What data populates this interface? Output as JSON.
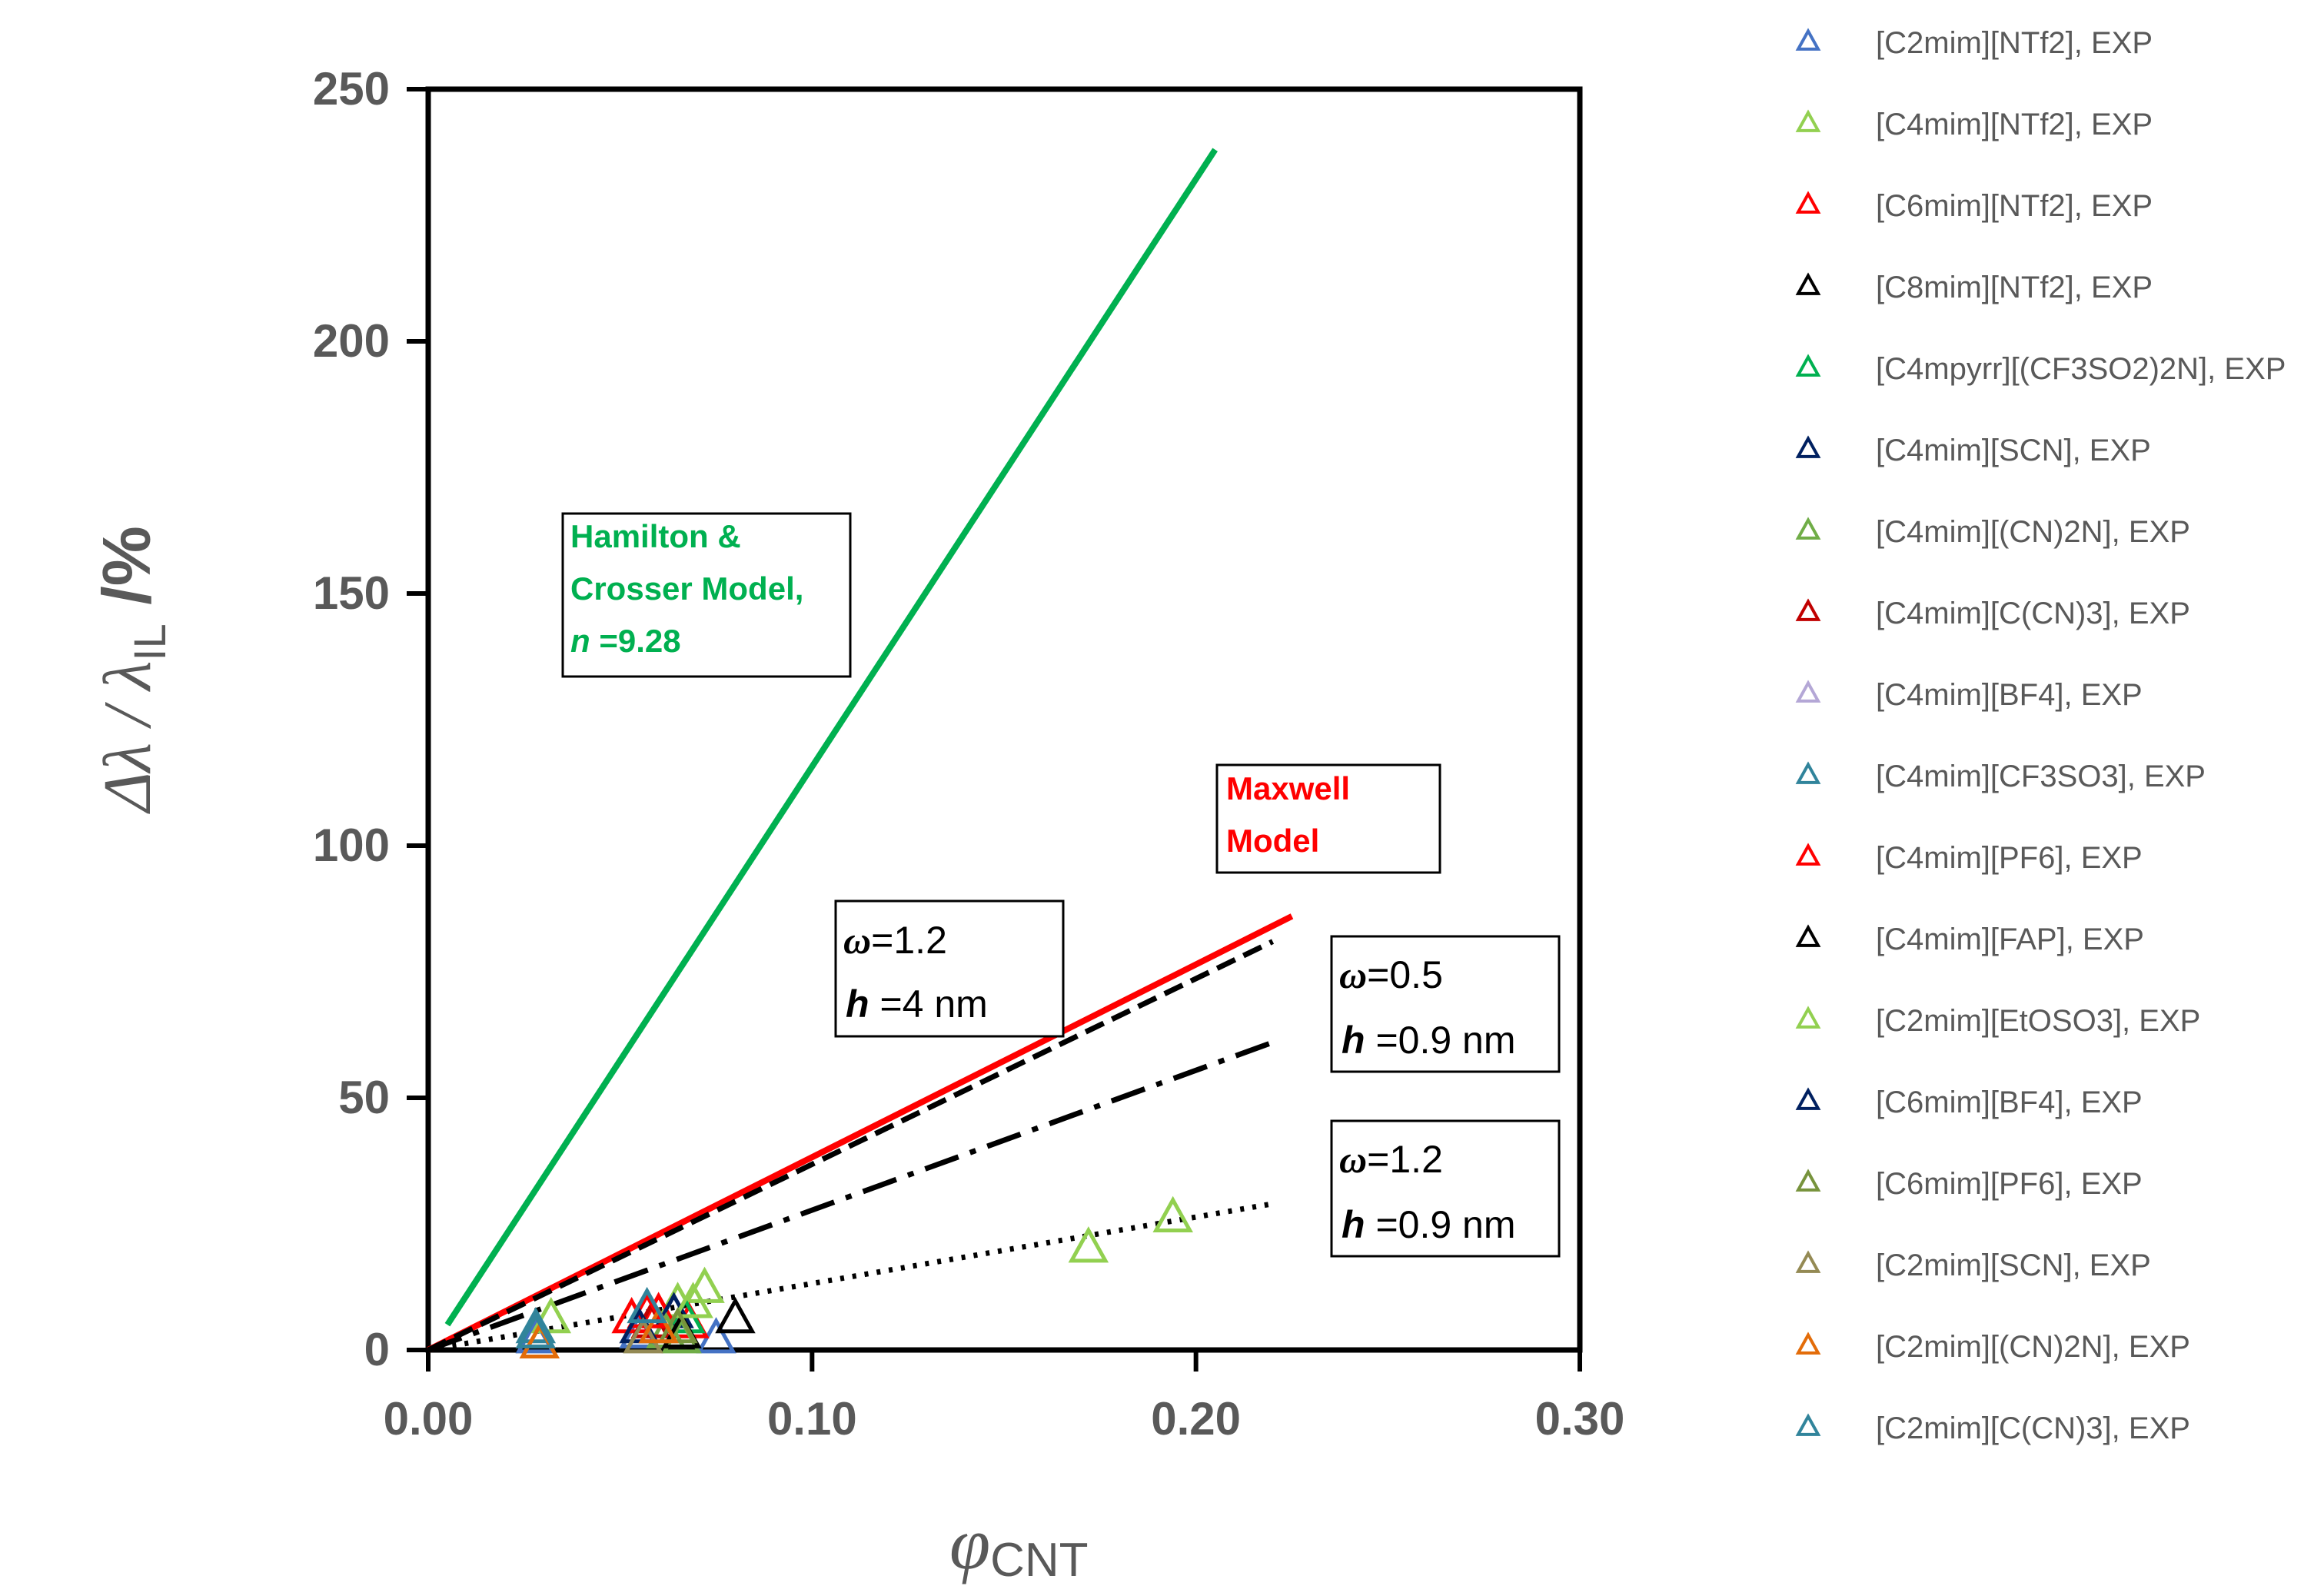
{
  "chart_data": {
    "type": "scatter",
    "xlabel_symbol": "φ",
    "xlabel_sub": "CNT",
    "ylabel_main": "Δλ / λ",
    "ylabel_sub": "IL",
    "ylabel_tail": " /%",
    "xlim": [
      0,
      0.3
    ],
    "ylim": [
      0,
      250
    ],
    "xticks": [
      0,
      0.1,
      0.2,
      0.3
    ],
    "xtick_labels": [
      "0.00",
      "0.10",
      "0.20",
      "0.30"
    ],
    "yticks": [
      0,
      50,
      100,
      150,
      200,
      250
    ],
    "ytick_labels": [
      "0",
      "50",
      "100",
      "150",
      "200",
      "250"
    ],
    "grid": false,
    "legend_position": "right",
    "lines": [
      {
        "name": "Hamilton & Crosser Model",
        "style": "solid",
        "color": "#00B050",
        "x": [
          0.005,
          0.205
        ],
        "y": [
          5,
          238
        ]
      },
      {
        "name": "Maxwell Model",
        "style": "solid",
        "color": "#FF0000",
        "x": [
          0.0,
          0.225
        ],
        "y": [
          0,
          86
        ]
      },
      {
        "name": "omega 1.2 h 4 nm",
        "style": "dashed",
        "color": "#000000",
        "x": [
          0.0,
          0.22
        ],
        "y": [
          0,
          81
        ]
      },
      {
        "name": "omega 0.5 h 0.9 nm",
        "style": "dashdot",
        "color": "#000000",
        "x": [
          0.0,
          0.22
        ],
        "y": [
          0,
          61
        ]
      },
      {
        "name": "omega 1.2 h 0.9 nm",
        "style": "dotted",
        "color": "#000000",
        "x": [
          0.0,
          0.22
        ],
        "y": [
          0,
          29
        ]
      }
    ],
    "series": [
      {
        "name": "[C2mim][NTf2], EXP",
        "color": "#4472C4",
        "points": [
          [
            0.028,
            2
          ],
          [
            0.055,
            3
          ],
          [
            0.075,
            2
          ]
        ]
      },
      {
        "name": "[C4mim][NTf2], EXP",
        "color": "#92D050",
        "points": [
          [
            0.032,
            6
          ],
          [
            0.065,
            9
          ],
          [
            0.072,
            12
          ],
          [
            0.172,
            20
          ],
          [
            0.194,
            26
          ]
        ]
      },
      {
        "name": "[C6mim][NTf2], EXP",
        "color": "#FF0000",
        "points": [
          [
            0.053,
            6
          ],
          [
            0.06,
            7
          ],
          [
            0.068,
            5
          ]
        ]
      },
      {
        "name": "[C8mim][NTf2], EXP",
        "color": "#000000",
        "points": [
          [
            0.08,
            6
          ]
        ]
      },
      {
        "name": "[C4mpyrr][(CF3SO2)2N], EXP",
        "color": "#00B050",
        "points": [
          [
            0.067,
            6
          ]
        ]
      },
      {
        "name": "[C4mim][SCN], EXP",
        "color": "#002060",
        "points": [
          [
            0.064,
            7
          ]
        ]
      },
      {
        "name": "[C4mim][(CN)2N], EXP",
        "color": "#70AD47",
        "points": [
          [
            0.062,
            3
          ],
          [
            0.066,
            2
          ]
        ]
      },
      {
        "name": "[C4mim][C(CN)3], EXP",
        "color": "#C00000",
        "points": [
          [
            0.058,
            5
          ]
        ]
      },
      {
        "name": "[C4mim][BF4], EXP",
        "color": "#B4A7D6",
        "points": [
          [
            0.06,
            4
          ]
        ]
      },
      {
        "name": "[C4mim][CF3SO3], EXP",
        "color": "#31849B",
        "points": [
          [
            0.028,
            4
          ]
        ]
      },
      {
        "name": "[C4mim][PF6], EXP",
        "color": "#FF0000",
        "points": [
          [
            0.057,
            7
          ]
        ]
      },
      {
        "name": "[C4mim][FAP], EXP",
        "color": "#000000",
        "points": [
          [
            0.066,
            3
          ]
        ]
      },
      {
        "name": "[C2mim][EtOSO3], EXP",
        "color": "#92D050",
        "points": [
          [
            0.069,
            9
          ]
        ]
      },
      {
        "name": "[C6mim][BF4], EXP",
        "color": "#002060",
        "points": [
          [
            0.055,
            4
          ]
        ]
      },
      {
        "name": "[C6mim][PF6], EXP",
        "color": "#77933C",
        "points": [
          [
            0.065,
            4
          ]
        ]
      },
      {
        "name": "[C2mim][SCN], EXP",
        "color": "#948A54",
        "points": [
          [
            0.056,
            2
          ]
        ]
      },
      {
        "name": "[C2mim][(CN)2N], EXP",
        "color": "#E36C09",
        "points": [
          [
            0.029,
            1
          ],
          [
            0.06,
            4
          ]
        ]
      },
      {
        "name": "[C2mim][C(CN)3], EXP",
        "color": "#31849B",
        "points": [
          [
            0.028,
            3
          ],
          [
            0.057,
            8
          ]
        ]
      }
    ],
    "annotations": {
      "hamilton": {
        "line1": "Hamilton &",
        "line2": "Crosser Model,",
        "line3_italic": "n",
        "line3_rest": " =9.28",
        "color": "#00B050"
      },
      "maxwell": {
        "line1": "Maxwell",
        "line2": "Model",
        "color": "#FF0000"
      },
      "box_a": {
        "omega_sym": "ω",
        "omega_val": "=1.2",
        "h_sym": "h",
        "h_val": " =4 nm"
      },
      "box_b": {
        "omega_sym": "ω",
        "omega_val": "=0.5",
        "h_sym": "h",
        "h_val": " =0.9 nm"
      },
      "box_c": {
        "omega_sym": "ω",
        "omega_val": "=1.2",
        "h_sym": "h",
        "h_val": " =0.9 nm"
      }
    }
  }
}
